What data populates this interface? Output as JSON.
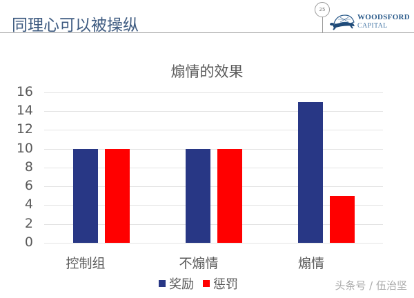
{
  "slide": {
    "title": "同理心可以被操纵",
    "page_number": "25",
    "logo": {
      "line1": "WOODSFORD",
      "line2": "CAPITAL",
      "icon": "turtle-logo-icon"
    },
    "watermark": "头条号 / 伍治坚"
  },
  "colors": {
    "reward": "#283785",
    "punishment": "#ff0000",
    "title": "#3d5a80",
    "text": "#595959",
    "grid": "#e3e3e3"
  },
  "chart_data": {
    "type": "bar",
    "title": "煽情的效果",
    "categories": [
      "控制组",
      "不煽情",
      "煽情"
    ],
    "series": [
      {
        "name": "奖励",
        "color": "#283785",
        "values": [
          10,
          10,
          15
        ]
      },
      {
        "name": "惩罚",
        "color": "#ff0000",
        "values": [
          10,
          10,
          5
        ]
      }
    ],
    "xlabel": "",
    "ylabel": "",
    "ylim": [
      0,
      16
    ],
    "yticks": [
      "16",
      "14",
      "12",
      "10",
      "8",
      "6",
      "4",
      "2",
      "0"
    ],
    "grid": true,
    "legend_position": "bottom"
  }
}
